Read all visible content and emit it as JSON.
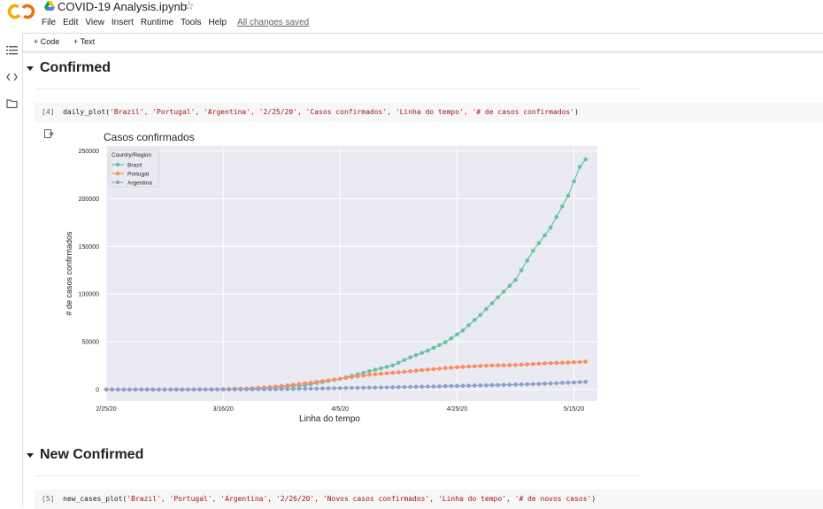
{
  "header": {
    "logo_text": "CO",
    "title": "COVID-19 Analysis.ipynb",
    "menu": [
      "File",
      "Edit",
      "View",
      "Insert",
      "Runtime",
      "Tools",
      "Help"
    ],
    "saved_status": "All changes saved"
  },
  "toolbar": {
    "code_label": "+ Code",
    "text_label": "+ Text"
  },
  "sections": [
    {
      "title": "Confirmed"
    },
    {
      "title": "New Confirmed"
    }
  ],
  "cells": [
    {
      "prompt": "[4]",
      "fn": "daily_plot(",
      "args": "'Brazil', 'Portugal', 'Argentina', '2/25/20', 'Casos confirmados', 'Linha do tempo', '# de casos confirmados'",
      "close": ")"
    },
    {
      "prompt": "[5]",
      "fn": "new_cases_plot(",
      "args": "'Brazil', 'Portugal', 'Argentina', '2/26/20', 'Novos casos confirmados', 'Linha do tempo', '# de novos casos'",
      "close": ")"
    }
  ],
  "chart_data": {
    "type": "line",
    "title": "Casos confirmados",
    "xlabel": "Linha do tempo",
    "ylabel": "# de casos confirmados",
    "xticks": [
      "2/25/20",
      "3/16/20",
      "4/5/20",
      "4/25/20",
      "5/15/20"
    ],
    "xrange": [
      "2/25/20",
      "5/19/20"
    ],
    "ylim": [
      -12000,
      255000
    ],
    "yticks": [
      0,
      50000,
      100000,
      150000,
      200000,
      250000
    ],
    "grid": true,
    "legend_title": "Country/Region",
    "legend_position": "top-left",
    "background": "#eaeaf2",
    "series": [
      {
        "name": "Brazil",
        "color": "#66c2a5",
        "points": [
          [
            "2/25/20",
            0
          ],
          [
            "3/1/20",
            2
          ],
          [
            "3/5/20",
            8
          ],
          [
            "3/10/20",
            31
          ],
          [
            "3/15/20",
            200
          ],
          [
            "3/20/20",
            904
          ],
          [
            "3/25/20",
            2433
          ],
          [
            "3/30/20",
            4579
          ],
          [
            "4/1/20",
            6836
          ],
          [
            "4/5/20",
            11130
          ],
          [
            "4/8/20",
            15927
          ],
          [
            "4/11/20",
            20727
          ],
          [
            "4/14/20",
            25262
          ],
          [
            "4/17/20",
            33682
          ],
          [
            "4/20/20",
            40743
          ],
          [
            "4/23/20",
            49492
          ],
          [
            "4/26/20",
            61888
          ],
          [
            "4/29/20",
            78162
          ],
          [
            "5/2/20",
            96559
          ],
          [
            "5/5/20",
            114715
          ],
          [
            "5/8/20",
            145328
          ],
          [
            "5/11/20",
            169594
          ],
          [
            "5/14/20",
            202918
          ],
          [
            "5/16/20",
            233142
          ],
          [
            "5/17/20",
            241080
          ]
        ]
      },
      {
        "name": "Portugal",
        "color": "#fc8d62",
        "points": [
          [
            "2/25/20",
            0
          ],
          [
            "3/5/20",
            8
          ],
          [
            "3/10/20",
            41
          ],
          [
            "3/15/20",
            245
          ],
          [
            "3/20/20",
            1020
          ],
          [
            "3/25/20",
            2995
          ],
          [
            "3/30/20",
            6408
          ],
          [
            "4/5/20",
            11278
          ],
          [
            "4/10/20",
            15472
          ],
          [
            "4/15/20",
            18091
          ],
          [
            "4/20/20",
            20863
          ],
          [
            "4/25/20",
            23392
          ],
          [
            "4/30/20",
            25045
          ],
          [
            "5/5/20",
            25702
          ],
          [
            "5/10/20",
            27406
          ],
          [
            "5/15/20",
            28583
          ],
          [
            "5/17/20",
            29209
          ]
        ]
      },
      {
        "name": "Argentina",
        "color": "#8da0cb",
        "points": [
          [
            "2/25/20",
            0
          ],
          [
            "3/5/20",
            1
          ],
          [
            "3/10/20",
            19
          ],
          [
            "3/15/20",
            45
          ],
          [
            "3/20/20",
            128
          ],
          [
            "3/25/20",
            387
          ],
          [
            "3/30/20",
            820
          ],
          [
            "4/5/20",
            1451
          ],
          [
            "4/10/20",
            1975
          ],
          [
            "4/15/20",
            2443
          ],
          [
            "4/20/20",
            3031
          ],
          [
            "4/25/20",
            3780
          ],
          [
            "4/30/20",
            4428
          ],
          [
            "5/5/20",
            5208
          ],
          [
            "5/10/20",
            6034
          ],
          [
            "5/15/20",
            7479
          ],
          [
            "5/17/20",
            8068
          ]
        ]
      }
    ]
  }
}
